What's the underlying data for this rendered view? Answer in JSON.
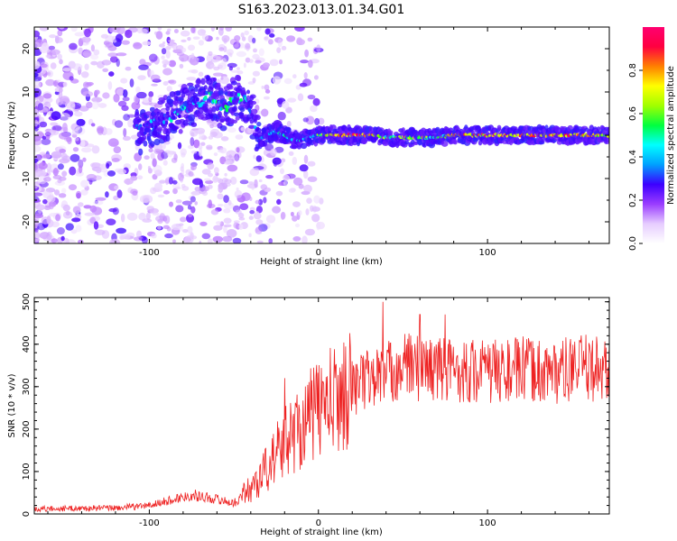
{
  "figure": {
    "title": "S163.2023.013.01.34.G01"
  },
  "chart_data": [
    {
      "type": "heatmap",
      "xlabel": "Height of straight line (km)",
      "ylabel": "Frequency (Hz)",
      "xlim": [
        -168,
        172
      ],
      "ylim": [
        -25,
        25
      ],
      "xticks": [
        -100,
        0,
        100
      ],
      "yticks": [
        -20,
        -10,
        0,
        10,
        20
      ],
      "colorbar": {
        "label": "Normalized spectral amplitude",
        "range": [
          0,
          1
        ],
        "ticks": [
          0.0,
          0.2,
          0.4,
          0.6,
          0.8
        ],
        "colormap": [
          "#ffffff",
          "#e6ccff",
          "#9a3cff",
          "#3c00ff",
          "#00a0ff",
          "#00ffff",
          "#00ff40",
          "#a0ff00",
          "#ffff00",
          "#ff8000",
          "#ff0040",
          "#ff0070"
        ]
      },
      "ridge": {
        "x": [
          -105,
          -95,
          -85,
          -75,
          -65,
          -55,
          -50,
          -45,
          -40,
          -35,
          -30,
          -25,
          -20,
          -15,
          -10,
          -5,
          0,
          10,
          20,
          30,
          40,
          50,
          60,
          70,
          80,
          100,
          120,
          140,
          160,
          172
        ],
        "y": [
          1,
          3,
          5,
          7,
          9,
          6,
          8,
          9,
          6,
          -1,
          0,
          1,
          0,
          -1,
          -1,
          -0.5,
          0,
          0,
          0,
          0,
          -0.5,
          -0.5,
          -0.5,
          -0.5,
          0,
          0,
          0,
          0,
          0,
          0
        ],
        "amplitude": [
          0.3,
          0.35,
          0.4,
          0.4,
          0.45,
          0.5,
          0.45,
          0.45,
          0.3,
          0.3,
          0.35,
          0.4,
          0.55,
          0.45,
          0.4,
          0.5,
          0.55,
          0.95,
          0.95,
          0.8,
          0.6,
          0.7,
          0.75,
          0.6,
          0.8,
          0.85,
          0.85,
          0.85,
          0.8,
          0.75
        ]
      }
    },
    {
      "type": "line",
      "xlabel": "Height of straight line (km)",
      "ylabel": "SNR (10 * v/v)",
      "xlim": [
        -168,
        172
      ],
      "ylim": [
        0,
        510
      ],
      "xticks": [
        -100,
        0,
        100
      ],
      "yticks": [
        0,
        100,
        200,
        300,
        400,
        500
      ],
      "series": [
        {
          "color": "#ee2222",
          "trend": {
            "x": [
              -168,
              -120,
              -100,
              -90,
              -75,
              -60,
              -50,
              -40,
              -30,
              -20,
              -10,
              0,
              10,
              20,
              30,
              40,
              50,
              60,
              80,
              100,
              120,
              140,
              160,
              172
            ],
            "y": [
              12,
              14,
              20,
              30,
              45,
              35,
              25,
              60,
              110,
              170,
              210,
              250,
              270,
              300,
              320,
              330,
              350,
              345,
              340,
              335,
              340,
              335,
              345,
              340
            ]
          },
          "peaks": [
            {
              "x": 38,
              "y": 500
            },
            {
              "x": 60,
              "y": 470
            },
            {
              "x": 75,
              "y": 470
            },
            {
              "x": -20,
              "y": 320
            }
          ]
        }
      ]
    }
  ]
}
